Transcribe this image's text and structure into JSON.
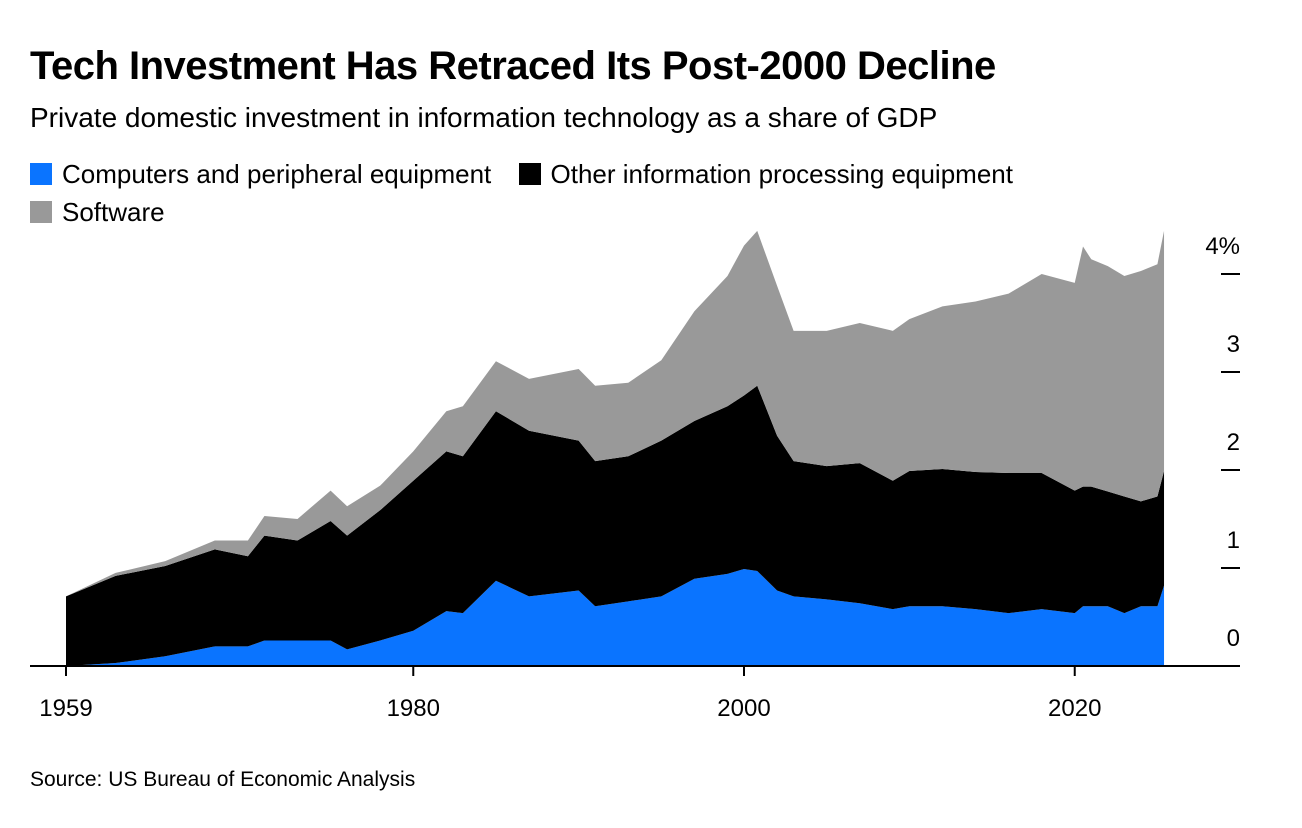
{
  "chart_data": {
    "type": "area",
    "stacked": true,
    "title": "Tech Investment Has Retraced Its Post-2000 Decline",
    "subtitle": "Private domestic investment in information technology as a share of GDP",
    "source": "Source: US Bureau of Economic Analysis",
    "xlabel": "",
    "ylabel": "",
    "xlim": [
      1959,
      2028
    ],
    "ylim": [
      0,
      4.5
    ],
    "x_ticks": [
      "1959",
      "1980",
      "2000",
      "2020"
    ],
    "x_tick_values": [
      1959,
      1980,
      2000,
      2020
    ],
    "y_ticks": [
      "0",
      "1",
      "2",
      "3",
      "4%"
    ],
    "y_tick_values": [
      0,
      1,
      2,
      3,
      4
    ],
    "y_axis_side": "right",
    "legend_placement": "top-left",
    "x": [
      1959,
      1962,
      1965,
      1968,
      1970,
      1971,
      1973,
      1975,
      1976,
      1978,
      1980,
      1982,
      1983,
      1985,
      1987,
      1990,
      1991,
      1993,
      1995,
      1997,
      1999,
      2000,
      2000.8,
      2002,
      2003,
      2005,
      2007,
      2009,
      2010,
      2012,
      2014,
      2016,
      2018,
      2020,
      2020.5,
      2021,
      2022,
      2023,
      2024,
      2025,
      2025.4
    ],
    "series": [
      {
        "name": "Computers and peripheral equipment",
        "color": "#0a74ff",
        "values": [
          0,
          0.03,
          0.1,
          0.2,
          0.2,
          0.26,
          0.26,
          0.26,
          0.17,
          0.26,
          0.36,
          0.56,
          0.54,
          0.87,
          0.71,
          0.77,
          0.61,
          0.66,
          0.71,
          0.89,
          0.94,
          0.99,
          0.97,
          0.77,
          0.71,
          0.68,
          0.64,
          0.58,
          0.61,
          0.61,
          0.58,
          0.54,
          0.58,
          0.54,
          0.61,
          0.61,
          0.61,
          0.54,
          0.61,
          0.61,
          0.82
        ]
      },
      {
        "name": "Other information processing equipment",
        "color": "#000000",
        "values": [
          0.71,
          0.89,
          0.92,
          0.99,
          0.92,
          1.07,
          1.02,
          1.22,
          1.16,
          1.33,
          1.53,
          1.63,
          1.6,
          1.73,
          1.69,
          1.53,
          1.48,
          1.48,
          1.59,
          1.61,
          1.71,
          1.77,
          1.89,
          1.58,
          1.38,
          1.36,
          1.43,
          1.31,
          1.38,
          1.4,
          1.4,
          1.43,
          1.39,
          1.25,
          1.22,
          1.22,
          1.17,
          1.19,
          1.07,
          1.12,
          1.17
        ]
      },
      {
        "name": "Software",
        "color": "#999999",
        "values": [
          0,
          0.03,
          0.05,
          0.09,
          0.16,
          0.2,
          0.22,
          0.31,
          0.3,
          0.25,
          0.3,
          0.41,
          0.51,
          0.51,
          0.53,
          0.73,
          0.77,
          0.75,
          0.82,
          1.12,
          1.33,
          1.53,
          1.58,
          1.53,
          1.33,
          1.38,
          1.43,
          1.53,
          1.55,
          1.66,
          1.74,
          1.83,
          2.03,
          2.12,
          2.45,
          2.32,
          2.3,
          2.25,
          2.35,
          2.37,
          2.45
        ]
      }
    ]
  }
}
